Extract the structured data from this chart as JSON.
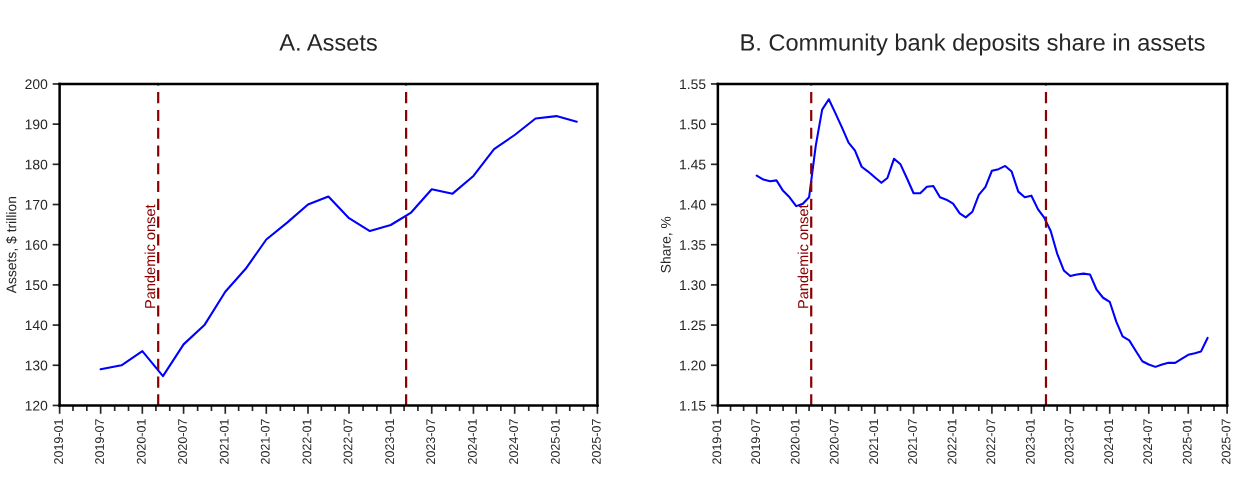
{
  "chart_data": [
    {
      "type": "line",
      "title": "A. Assets",
      "ylabel": "Assets, $ trillion",
      "x": [
        "2019-07",
        "2019-10",
        "2020-01",
        "2020-04",
        "2020-07",
        "2020-10",
        "2021-01",
        "2021-04",
        "2021-07",
        "2021-10",
        "2022-01",
        "2022-04",
        "2022-07",
        "2022-10",
        "2023-01",
        "2023-04",
        "2023-07",
        "2023-10",
        "2024-01",
        "2024-04",
        "2024-07",
        "2024-10",
        "2025-01",
        "2025-04"
      ],
      "series": [
        {
          "color": "#0000ff",
          "values": [
            129,
            130,
            133.5,
            127.3,
            135.2,
            140,
            148.3,
            154,
            161.3,
            165.5,
            170,
            172,
            166.6,
            163.4,
            164.9,
            168,
            173.8,
            172.7,
            177.1,
            183.8,
            187.3,
            191.4,
            192,
            190.6
          ]
        }
      ],
      "xlim": [
        "2019-01",
        "2025-07"
      ],
      "xticks": [
        "2019-01",
        "2019-07",
        "2020-01",
        "2020-07",
        "2021-01",
        "2021-07",
        "2022-01",
        "2022-07",
        "2023-01",
        "2023-07",
        "2024-01",
        "2024-07",
        "2025-01",
        "2025-07"
      ],
      "ylim": [
        120,
        200
      ],
      "yticks": [
        120,
        130,
        140,
        150,
        160,
        170,
        180,
        190,
        200
      ],
      "ref_lines": [
        {
          "axis": "x",
          "value": "2020-03-11",
          "label": "Pandemic onset",
          "color": "#8b0000",
          "line_style": "dashed"
        },
        {
          "axis": "x",
          "value": "2023-03-10",
          "color": "#8b0000",
          "line_style": "dashed"
        }
      ],
      "grid": false,
      "legend": false
    },
    {
      "type": "line",
      "title": "B. Community bank deposits share in assets",
      "ylabel": "Share, %",
      "x": [
        "2019-07",
        "2019-08",
        "2019-09",
        "2019-10",
        "2019-11",
        "2019-12",
        "2020-01",
        "2020-02",
        "2020-03",
        "2020-04",
        "2020-05",
        "2020-06",
        "2020-07",
        "2020-08",
        "2020-09",
        "2020-10",
        "2020-11",
        "2020-12",
        "2021-01",
        "2021-02",
        "2021-03",
        "2021-04",
        "2021-05",
        "2021-06",
        "2021-07",
        "2021-08",
        "2021-09",
        "2021-10",
        "2021-11",
        "2021-12",
        "2022-01",
        "2022-02",
        "2022-03",
        "2022-04",
        "2022-05",
        "2022-06",
        "2022-07",
        "2022-08",
        "2022-09",
        "2022-10",
        "2022-11",
        "2022-12",
        "2023-01",
        "2023-02",
        "2023-03",
        "2023-04",
        "2023-05",
        "2023-06",
        "2023-07",
        "2023-08",
        "2023-09",
        "2023-10",
        "2023-11",
        "2023-12",
        "2024-01",
        "2024-02",
        "2024-03",
        "2024-04",
        "2024-05",
        "2024-06",
        "2024-07",
        "2024-08",
        "2024-09",
        "2024-10",
        "2024-11",
        "2024-12",
        "2025-01",
        "2025-02",
        "2025-03",
        "2025-04"
      ],
      "series": [
        {
          "color": "#0000ff",
          "values": [
            1.436,
            1.431,
            1.429,
            1.43,
            1.417,
            1.409,
            1.398,
            1.401,
            1.409,
            1.473,
            1.518,
            1.531,
            1.514,
            1.496,
            1.477,
            1.467,
            1.447,
            1.441,
            1.434,
            1.427,
            1.433,
            1.457,
            1.45,
            1.432,
            1.414,
            1.414,
            1.422,
            1.423,
            1.409,
            1.406,
            1.401,
            1.389,
            1.384,
            1.391,
            1.412,
            1.422,
            1.442,
            1.444,
            1.448,
            1.441,
            1.416,
            1.409,
            1.411,
            1.394,
            1.384,
            1.367,
            1.339,
            1.318,
            1.311,
            1.313,
            1.314,
            1.313,
            1.294,
            1.284,
            1.279,
            1.254,
            1.236,
            1.231,
            1.218,
            1.205,
            1.201,
            1.198,
            1.201,
            1.203,
            1.203,
            1.208,
            1.213,
            1.215,
            1.217,
            1.234
          ]
        }
      ],
      "xlim": [
        "2019-01",
        "2025-07"
      ],
      "xticks": [
        "2019-01",
        "2019-07",
        "2020-01",
        "2020-07",
        "2021-01",
        "2021-07",
        "2022-01",
        "2022-07",
        "2023-01",
        "2023-07",
        "2024-01",
        "2024-07",
        "2025-01",
        "2025-07"
      ],
      "ylim": [
        1.15,
        1.55
      ],
      "yticks": [
        {
          "value": 1.15,
          "label": "1.15"
        },
        {
          "value": 1.2,
          "label": "1.20"
        },
        {
          "value": 1.25,
          "label": "1.25"
        },
        {
          "value": 1.3,
          "label": "1.30"
        },
        {
          "value": 1.35,
          "label": "1.35"
        },
        {
          "value": 1.4,
          "label": "1.40"
        },
        {
          "value": 1.45,
          "label": "1.45"
        },
        {
          "value": 1.5,
          "label": "1.50"
        },
        {
          "value": 1.55,
          "label": "1.55"
        }
      ],
      "ref_lines": [
        {
          "axis": "x",
          "value": "2020-03-11",
          "label": "Pandemic onset",
          "color": "#8b0000",
          "line_style": "dashed"
        },
        {
          "axis": "x",
          "value": "2023-03-10",
          "color": "#8b0000",
          "line_style": "dashed"
        }
      ],
      "grid": false,
      "legend": false
    }
  ]
}
